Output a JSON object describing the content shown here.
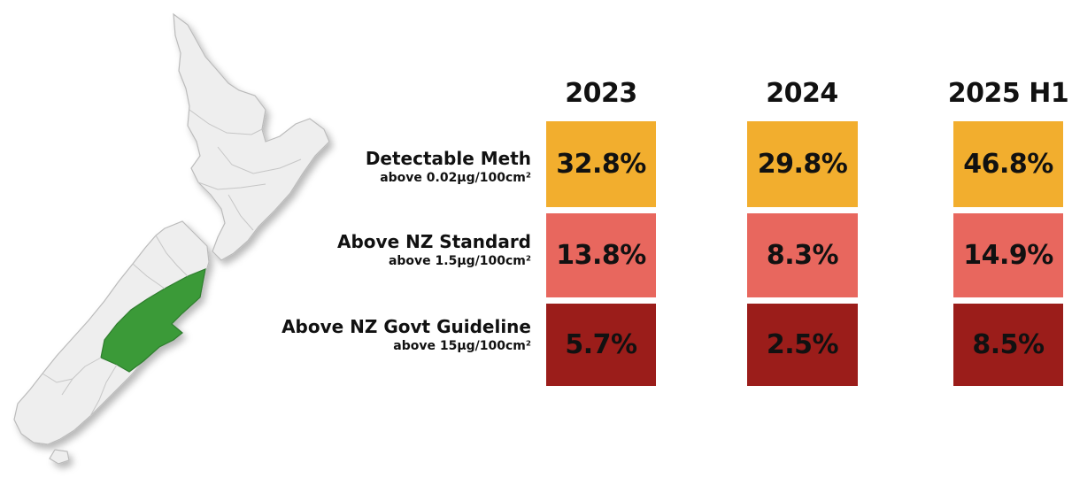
{
  "colors": {
    "detectable": "#f2ae2e",
    "standard": "#e8675e",
    "guideline": "#9b1d1a",
    "region_highlight": "#3a9a38",
    "map_land": "#eeeeee"
  },
  "chart_data": {
    "type": "table",
    "columns": [
      "2023",
      "2024",
      "2025 H1"
    ],
    "rows": [
      {
        "label": "Detectable Meth",
        "sublabel": "above 0.02µg/100cm²",
        "values": [
          "32.8%",
          "29.8%",
          "46.8%"
        ]
      },
      {
        "label": "Above NZ Standard",
        "sublabel": "above 1.5µg/100cm²",
        "values": [
          "13.8%",
          "8.3%",
          "14.9%"
        ]
      },
      {
        "label": "Above NZ Govt Guideline",
        "sublabel": "above 15µg/100cm²",
        "values": [
          "5.7%",
          "2.5%",
          "8.5%"
        ]
      }
    ]
  }
}
